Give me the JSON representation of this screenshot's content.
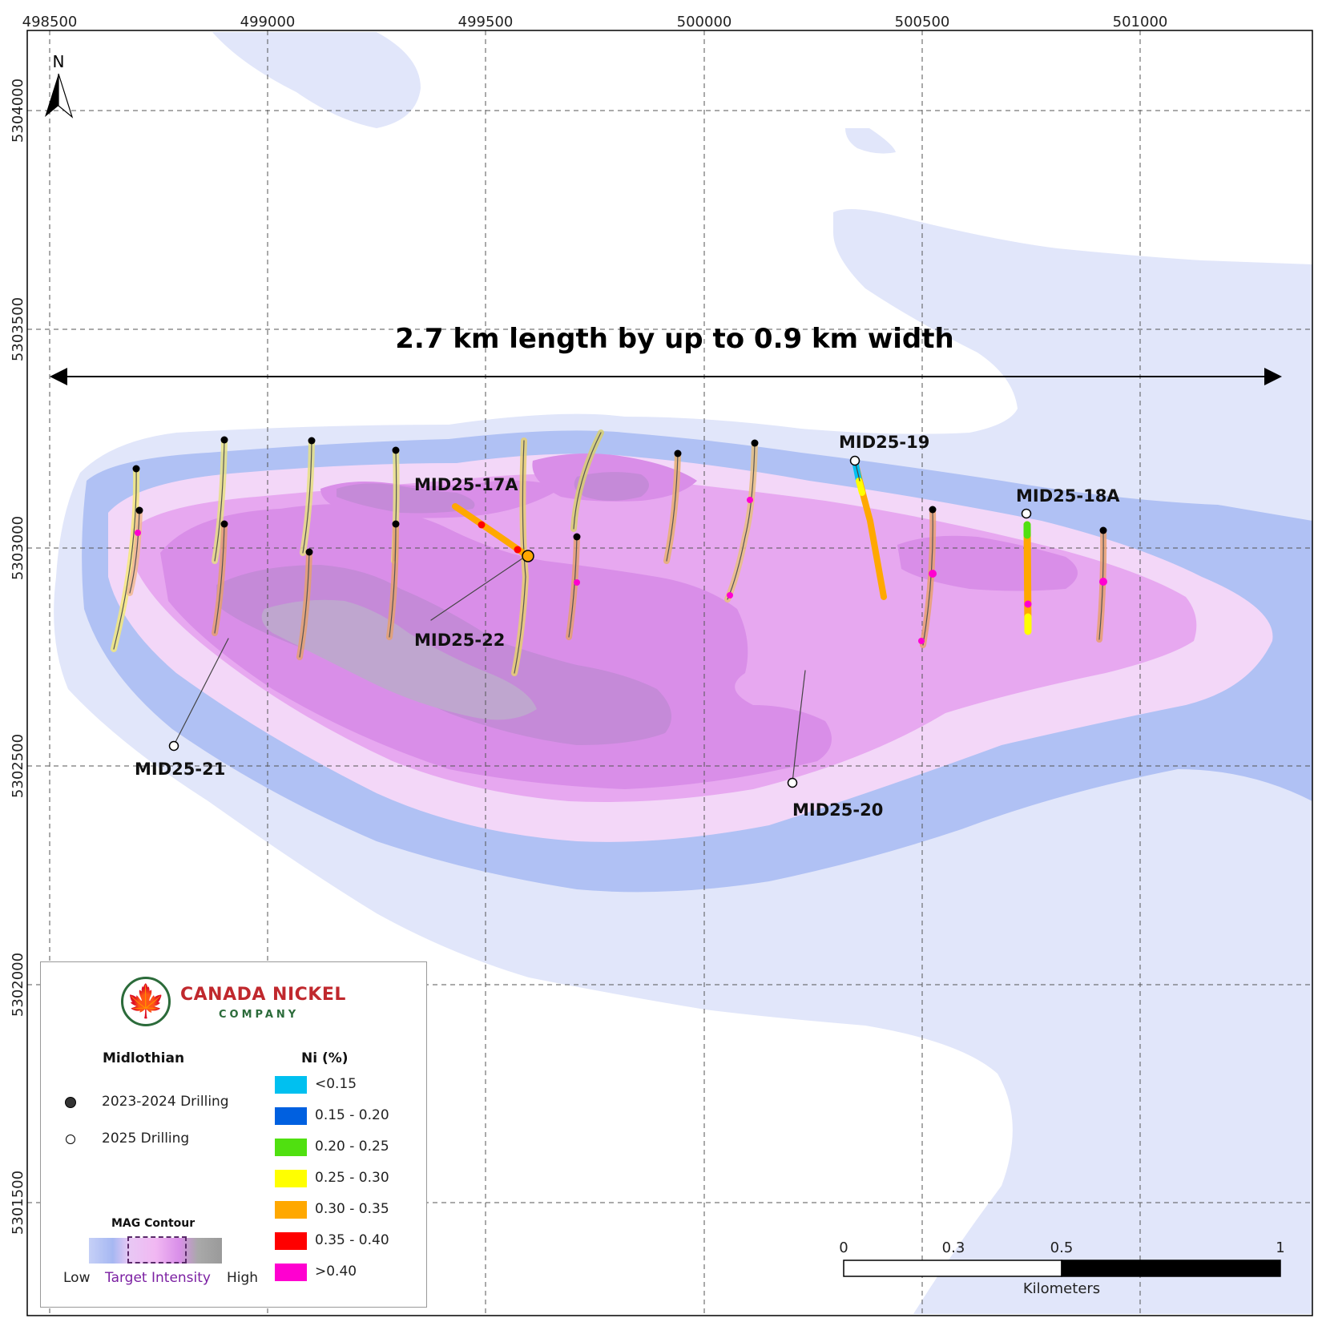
{
  "map": {
    "headline": "2.7 km length by up to 0.9 km width",
    "x_ticks": [
      "498500",
      "499000",
      "499500",
      "500000",
      "500500",
      "501000"
    ],
    "y_ticks": [
      "5304000",
      "5303500",
      "5303000",
      "5302500",
      "5302000",
      "5301500"
    ],
    "north_label": "N",
    "drill_holes_2025": [
      {
        "id": "MID25-17A"
      },
      {
        "id": "MID25-22"
      },
      {
        "id": "MID25-21"
      },
      {
        "id": "MID25-19"
      },
      {
        "id": "MID25-18A"
      },
      {
        "id": "MID25-20"
      }
    ]
  },
  "legend": {
    "company_name": "CANADA NICKEL",
    "company_sub": "COMPANY",
    "project": "Midlothian",
    "drilling_2023_2024": "2023-2024 Drilling",
    "drilling_2025": "2025 Drilling",
    "ni_title": "Ni (%)",
    "ni_classes": [
      {
        "label": "<0.15",
        "color": "#00c0f0"
      },
      {
        "label": "0.15 - 0.20",
        "color": "#0060e0"
      },
      {
        "label": "0.20 - 0.25",
        "color": "#50e010"
      },
      {
        "label": "0.25 - 0.30",
        "color": "#ffff00"
      },
      {
        "label": "0.30 - 0.35",
        "color": "#ffa800"
      },
      {
        "label": "0.35 - 0.40",
        "color": "#ff0000"
      },
      {
        "label": ">0.40",
        "color": "#ff00d0"
      }
    ],
    "mag_title": "MAG Contour",
    "mag_low": "Low",
    "mag_target": "Target Intensity",
    "mag_high": "High"
  },
  "scale_bar": {
    "ticks": [
      "0",
      "0.3",
      "0.5",
      "1"
    ],
    "unit": "Kilometers"
  }
}
